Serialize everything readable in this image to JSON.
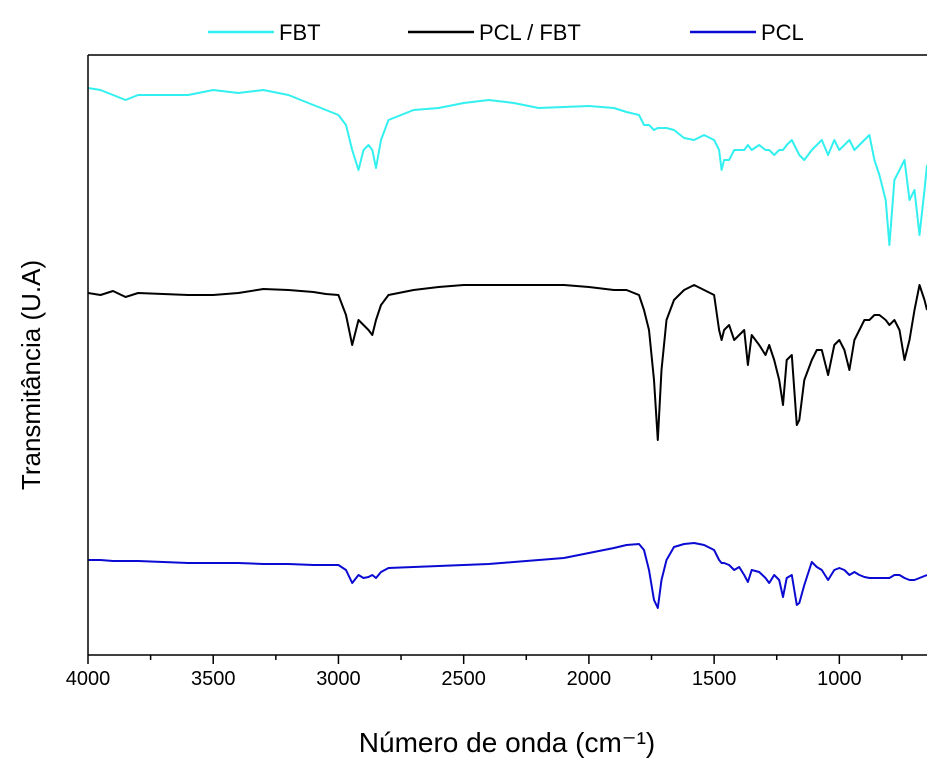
{
  "chart_data": {
    "type": "line",
    "x_label": "Número de onda (cm⁻¹)",
    "y_label": "Transmitância (U.A)",
    "x": [
      4000,
      3950,
      3900,
      3850,
      3800,
      3700,
      3600,
      3500,
      3400,
      3300,
      3200,
      3100,
      3050,
      3000,
      2970,
      2945,
      2920,
      2900,
      2880,
      2865,
      2850,
      2830,
      2800,
      2700,
      2600,
      2500,
      2400,
      2300,
      2200,
      2100,
      2000,
      1900,
      1850,
      1800,
      1780,
      1760,
      1740,
      1725,
      1710,
      1690,
      1660,
      1620,
      1580,
      1540,
      1500,
      1480,
      1470,
      1460,
      1440,
      1420,
      1400,
      1380,
      1365,
      1350,
      1320,
      1295,
      1280,
      1260,
      1240,
      1225,
      1210,
      1190,
      1170,
      1160,
      1140,
      1110,
      1090,
      1070,
      1045,
      1020,
      1000,
      980,
      960,
      940,
      920,
      900,
      880,
      860,
      840,
      815,
      800,
      780,
      760,
      740,
      720,
      700,
      680,
      660,
      650
    ],
    "series": [
      {
        "name": "FBT",
        "color": "#33f0f0",
        "values": [
          567,
          565,
          560,
          555,
          560,
          560,
          560,
          565,
          562,
          565,
          560,
          550,
          545,
          540,
          530,
          505,
          485,
          505,
          510,
          505,
          487,
          515,
          535,
          545,
          547,
          552,
          555,
          552,
          547,
          548,
          549,
          547,
          543,
          540,
          530,
          530,
          525,
          527,
          527,
          527,
          525,
          517,
          515,
          520,
          515,
          505,
          485,
          495,
          495,
          505,
          505,
          505,
          510,
          505,
          510,
          505,
          505,
          500,
          505,
          505,
          510,
          515,
          505,
          500,
          495,
          505,
          510,
          515,
          500,
          515,
          505,
          510,
          515,
          505,
          510,
          515,
          520,
          495,
          480,
          455,
          410,
          475,
          485,
          495,
          455,
          465,
          420,
          465,
          490
        ]
      },
      {
        "name": "PCL / FBT",
        "color": "#000000",
        "values": [
          362,
          360,
          364,
          358,
          362,
          361,
          360,
          360,
          362,
          366,
          365,
          363,
          361,
          360,
          340,
          310,
          335,
          330,
          325,
          320,
          335,
          350,
          360,
          365,
          368,
          370,
          370,
          370,
          370,
          370,
          368,
          365,
          365,
          360,
          345,
          325,
          275,
          215,
          285,
          335,
          355,
          365,
          370,
          365,
          360,
          325,
          315,
          325,
          330,
          315,
          320,
          325,
          290,
          320,
          310,
          300,
          310,
          295,
          275,
          250,
          295,
          300,
          230,
          235,
          275,
          295,
          305,
          305,
          280,
          310,
          315,
          305,
          285,
          315,
          325,
          335,
          335,
          340,
          340,
          335,
          330,
          335,
          325,
          295,
          315,
          345,
          370,
          355,
          345
        ]
      },
      {
        "name": "PCL",
        "color": "#0a0ad2",
        "values": [
          95,
          95,
          94,
          94,
          94,
          93,
          92,
          92,
          92,
          91,
          91,
          90,
          90,
          90,
          85,
          72,
          80,
          77,
          78,
          80,
          77,
          83,
          87,
          88,
          89,
          90,
          91,
          93,
          95,
          97,
          102,
          107,
          110,
          111,
          105,
          85,
          55,
          47,
          75,
          95,
          108,
          111,
          112,
          110,
          105,
          95,
          92,
          92,
          90,
          85,
          88,
          80,
          73,
          85,
          83,
          77,
          72,
          80,
          75,
          58,
          77,
          80,
          50,
          52,
          70,
          93,
          88,
          85,
          75,
          85,
          87,
          85,
          80,
          83,
          80,
          78,
          77,
          77,
          77,
          77,
          77,
          80,
          80,
          77,
          75,
          75,
          77,
          79,
          80
        ]
      }
    ],
    "xlim": [
      4000,
      650
    ],
    "xticks": [
      4000,
      3500,
      3000,
      2500,
      2000,
      1500,
      1000
    ],
    "xminor": [
      3750,
      3250,
      2750,
      2250,
      1750,
      1250,
      750
    ],
    "ylim": [
      0,
      600
    ],
    "legend": "top"
  }
}
